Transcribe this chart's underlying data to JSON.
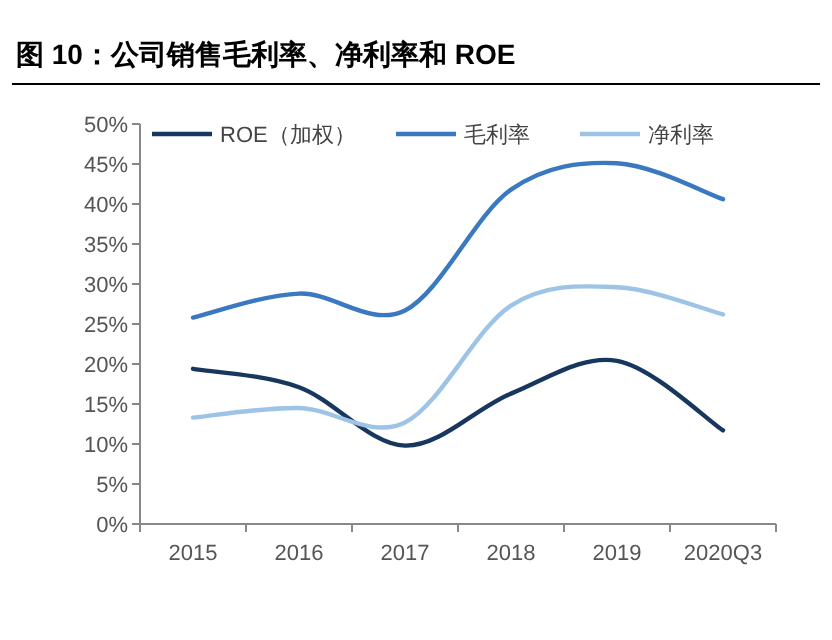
{
  "chart_data": {
    "type": "line",
    "title": "图 10：公司销售毛利率、净利率和 ROE",
    "categories": [
      "2015",
      "2016",
      "2017",
      "2018",
      "2019",
      "2020Q3"
    ],
    "series": [
      {
        "name": "ROE（加权）",
        "color": "#17375e",
        "values": [
          19.4,
          17.1,
          9.8,
          16.3,
          20.4,
          11.7
        ]
      },
      {
        "name": "毛利率",
        "color": "#3a78c0",
        "values": [
          25.8,
          28.8,
          26.7,
          41.8,
          45.1,
          40.6
        ]
      },
      {
        "name": "净利率",
        "color": "#9dc3e6",
        "values": [
          13.3,
          14.5,
          12.7,
          27.3,
          29.6,
          26.2
        ]
      }
    ],
    "ylim": [
      0,
      50
    ],
    "yticks": [
      {
        "value": 0,
        "label": "0%"
      },
      {
        "value": 5,
        "label": "5%"
      },
      {
        "value": 10,
        "label": "10%"
      },
      {
        "value": 15,
        "label": "15%"
      },
      {
        "value": 20,
        "label": "20%"
      },
      {
        "value": 25,
        "label": "25%"
      },
      {
        "value": 30,
        "label": "30%"
      },
      {
        "value": 35,
        "label": "35%"
      },
      {
        "value": 40,
        "label": "40%"
      },
      {
        "value": 45,
        "label": "45%"
      },
      {
        "value": 50,
        "label": "50%"
      }
    ],
    "grid": false,
    "legend": "top"
  }
}
